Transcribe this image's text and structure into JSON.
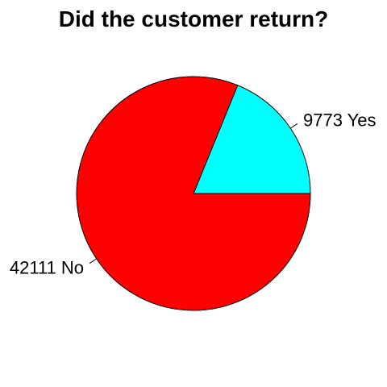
{
  "chart_data": {
    "type": "pie",
    "title": "Did the customer return?",
    "slices": [
      {
        "label": "9773 Yes",
        "category": "Yes",
        "value": 9773,
        "color": "#00ffff"
      },
      {
        "label": "42111 No",
        "category": "No",
        "value": 42111,
        "color": "#ff0000"
      }
    ],
    "start_angle_deg": 0,
    "direction": "counterclockwise",
    "border_color": "#000000"
  }
}
